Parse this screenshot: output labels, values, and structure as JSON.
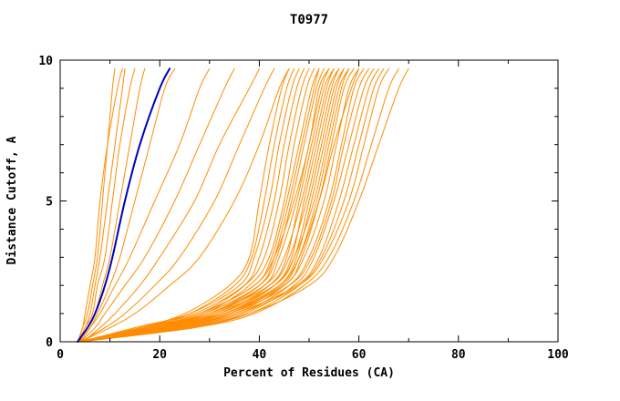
{
  "colors": {
    "orange": "#FF8C00",
    "blue": "#0000BB",
    "axis": "#000000",
    "background": "#FFFFFF"
  },
  "chart_data": {
    "type": "line",
    "title": "T0977",
    "xlabel": "Percent of Residues (CA)",
    "ylabel": "Distance Cutoff, A",
    "xlim": [
      0,
      100
    ],
    "ylim": [
      0,
      10
    ],
    "xticks": [
      0,
      20,
      40,
      60,
      80,
      100
    ],
    "yticks": [
      0,
      5,
      10
    ],
    "xminor_ticks": [
      10,
      30,
      50,
      70,
      90
    ],
    "yminor_ticks": [
      1,
      2,
      3,
      4,
      6,
      7,
      8,
      9
    ],
    "grid": "off",
    "legend": "none",
    "note": "Each series lists percent-of-residues (x) values at the shared distance cutoffs (y). One blue highlighted model, many orange models.",
    "cutoffs": [
      0,
      0.5,
      1,
      2,
      3,
      5,
      7,
      9,
      9.7
    ],
    "series": {
      "blue_model": [
        3.5,
        5.5,
        7,
        9,
        10.5,
        13,
        16,
        20,
        22
      ],
      "orange_models": [
        [
          3.5,
          4.5,
          5.5,
          6.5,
          7.5,
          8.5,
          9.5,
          10.5,
          11
        ],
        [
          3.5,
          5,
          6,
          7,
          8,
          9.5,
          11,
          12.5,
          13
        ],
        [
          4,
          5,
          6.5,
          7.5,
          9,
          10.5,
          12,
          14,
          15
        ],
        [
          3.5,
          5.5,
          7,
          8.5,
          10,
          12,
          14,
          16,
          17
        ],
        [
          4,
          6,
          7.5,
          10,
          12,
          15,
          18,
          21,
          23
        ],
        [
          3.5,
          4.5,
          5,
          6,
          7,
          8,
          9.5,
          11.5,
          12.5
        ],
        [
          4,
          6,
          8,
          11,
          14,
          19,
          24,
          28,
          30
        ],
        [
          4,
          7,
          9,
          13,
          17,
          23,
          28,
          33,
          35
        ],
        [
          4.5,
          8,
          11,
          16,
          20,
          27,
          32,
          38,
          40
        ],
        [
          4,
          9,
          13,
          19,
          24,
          31,
          36,
          41,
          43
        ],
        [
          4,
          10,
          15,
          22,
          28,
          35,
          40,
          44,
          46
        ],
        [
          4,
          16,
          25,
          34,
          38,
          40,
          42,
          44.5,
          46
        ],
        [
          3.5,
          17,
          26,
          35,
          38.5,
          41,
          43,
          45.5,
          47
        ],
        [
          4,
          15,
          26,
          36,
          39,
          42,
          44,
          46.5,
          48
        ],
        [
          4.5,
          18,
          28,
          37,
          40,
          43,
          45,
          47.5,
          49
        ],
        [
          4,
          16,
          27,
          37,
          41,
          44,
          46,
          48.5,
          50
        ],
        [
          3.5,
          19,
          29,
          38,
          42,
          45,
          47,
          49.5,
          51
        ],
        [
          4,
          17,
          28,
          39,
          42.5,
          45.5,
          48,
          50.5,
          52
        ],
        [
          4.5,
          20,
          30,
          40,
          43,
          46,
          48.5,
          51,
          52
        ],
        [
          4,
          18,
          29,
          40,
          43.5,
          46.5,
          49,
          51.5,
          53
        ],
        [
          4,
          21,
          31,
          41,
          44,
          47.5,
          50,
          52.5,
          54
        ],
        [
          3.5,
          17,
          28,
          39,
          43,
          47,
          50,
          52,
          54
        ],
        [
          4,
          19,
          30,
          41,
          45,
          48.5,
          51,
          53.5,
          55
        ],
        [
          4.5,
          22,
          32,
          42,
          45.5,
          48,
          50.5,
          53,
          55
        ],
        [
          4,
          18,
          30,
          42,
          46,
          49.5,
          52,
          54.5,
          56
        ],
        [
          4,
          21,
          33,
          43,
          46.5,
          49,
          51.5,
          54,
          56
        ],
        [
          3.5,
          20,
          31,
          43,
          47,
          50,
          52.5,
          55,
          57
        ],
        [
          4,
          23,
          34,
          44,
          47.5,
          50.5,
          53,
          55.5,
          57
        ],
        [
          4.5,
          19,
          32,
          43,
          47,
          51,
          53.5,
          56,
          58
        ],
        [
          4,
          22,
          34,
          44.5,
          48,
          51.5,
          54,
          56.5,
          58
        ],
        [
          4,
          20,
          33,
          45,
          48.5,
          52,
          54.5,
          57,
          59
        ],
        [
          3.5,
          23,
          35,
          45,
          49,
          53,
          55.5,
          58,
          60
        ],
        [
          4,
          21,
          33,
          44,
          48,
          52,
          55,
          58.5,
          60
        ],
        [
          4,
          24,
          36,
          46,
          50,
          54,
          56.5,
          59,
          61
        ],
        [
          4.5,
          22,
          34,
          46,
          50.5,
          54.5,
          57,
          60,
          62
        ],
        [
          4,
          25,
          37,
          47,
          51,
          55,
          58,
          61,
          63
        ],
        [
          4,
          23,
          35,
          47.5,
          52,
          56,
          59,
          62,
          64
        ],
        [
          3.5,
          26,
          38,
          48,
          52.5,
          57,
          60,
          63,
          65
        ],
        [
          4,
          24,
          36,
          48,
          53,
          58,
          61,
          64,
          66
        ],
        [
          4,
          27,
          39,
          49,
          54,
          59,
          62.5,
          66,
          68
        ],
        [
          4.5,
          25,
          38,
          50,
          55,
          60,
          64,
          68,
          70
        ]
      ]
    }
  }
}
